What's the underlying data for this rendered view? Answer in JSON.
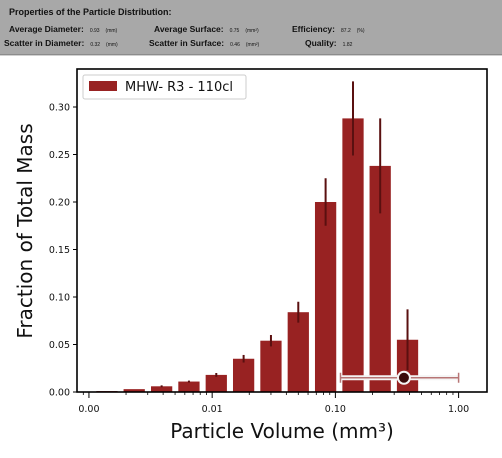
{
  "properties": {
    "title": "Properties of the Particle Distribution:",
    "rows": [
      [
        {
          "label": "Average Diameter:",
          "value": "0.93",
          "unit": "(mm)"
        },
        {
          "label": "Average Surface:",
          "value": "0.75",
          "unit": "(mm²)"
        },
        {
          "label": "Efficiency:",
          "value": "87.2",
          "unit": "(%)"
        }
      ],
      [
        {
          "label": "Scatter in Diameter:",
          "value": "0.32",
          "unit": "(mm)"
        },
        {
          "label": "Scatter in Surface:",
          "value": "0.46",
          "unit": "(mm²)"
        },
        {
          "label": "Quality:",
          "value": "1.82",
          "unit": ""
        }
      ]
    ]
  },
  "colors": {
    "bar": "#982222",
    "error": "#5a1010",
    "marker": "#3a0a0a"
  },
  "chart_data": {
    "type": "bar",
    "xlabel": "Particle Volume (mm³)",
    "ylabel": "Fraction of Total Mass",
    "xscale": "log",
    "xlim": [
      0.0008,
      1.7
    ],
    "ylim": [
      0,
      0.34
    ],
    "yticks": [
      0.0,
      0.05,
      0.1,
      0.15,
      0.2,
      0.25,
      0.3
    ],
    "ytick_labels": [
      "0.00",
      "0.05",
      "0.10",
      "0.15",
      "0.20",
      "0.25",
      "0.30"
    ],
    "xticks": [
      0.001,
      0.01,
      0.1,
      1.0
    ],
    "xtick_labels": [
      "0.00",
      "0.01",
      "0.10",
      "1.00"
    ],
    "legend": {
      "label": "MHW- R3  - 110cl",
      "placement": "top-left"
    },
    "bars": [
      {
        "x": 0.0014,
        "value": 0.001,
        "err": 0.0
      },
      {
        "x": 0.00233,
        "value": 0.003,
        "err": 0.0
      },
      {
        "x": 0.00389,
        "value": 0.006,
        "err": 0.001
      },
      {
        "x": 0.00648,
        "value": 0.011,
        "err": 0.001
      },
      {
        "x": 0.0108,
        "value": 0.018,
        "err": 0.002
      },
      {
        "x": 0.018,
        "value": 0.035,
        "err": 0.004
      },
      {
        "x": 0.03,
        "value": 0.054,
        "err": 0.006
      },
      {
        "x": 0.05,
        "value": 0.084,
        "err": 0.011
      },
      {
        "x": 0.0833,
        "value": 0.2,
        "err": 0.025
      },
      {
        "x": 0.139,
        "value": 0.288,
        "err": 0.039
      },
      {
        "x": 0.231,
        "value": 0.238,
        "err": 0.05
      },
      {
        "x": 0.385,
        "value": 0.055,
        "err": 0.032
      }
    ],
    "summary_point": {
      "x": 0.36,
      "y": 0.015,
      "xerr_low": 0.11,
      "xerr_high": 1.0
    }
  }
}
